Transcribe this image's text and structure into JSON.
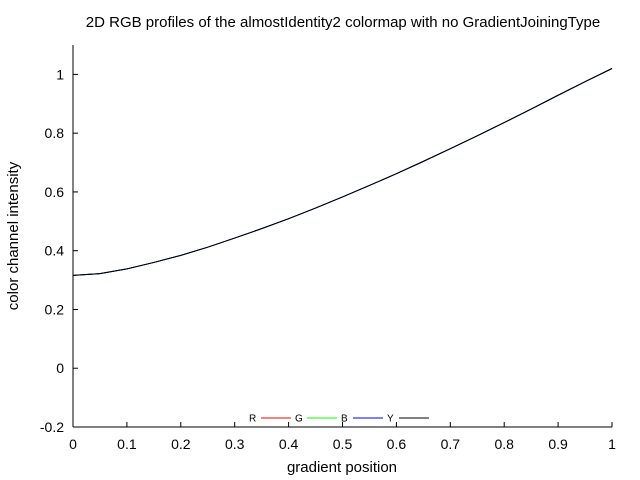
{
  "chart_data": {
    "type": "line",
    "title": "2D RGB profiles of the almostIdentity2 colormap with no GradientJoiningType",
    "xlabel": "gradient position",
    "ylabel": "color channel intensity",
    "xlim": [
      0,
      1
    ],
    "ylim": [
      -0.2,
      1.1
    ],
    "xticks": [
      0,
      0.1,
      0.2,
      0.3,
      0.4,
      0.5,
      0.6,
      0.7,
      0.8,
      0.9,
      1
    ],
    "xtick_labels": [
      "0",
      "0.1",
      "0.2",
      "0.3",
      "0.4",
      "0.5",
      "0.6",
      "0.7",
      "0.8",
      "0.9",
      "1"
    ],
    "yticks": [
      -0.2,
      0,
      0.2,
      0.4,
      0.6,
      0.8,
      1
    ],
    "ytick_labels": [
      "-0.2",
      "0",
      "0.2",
      "0.4",
      "0.6",
      "0.8",
      "1"
    ],
    "legend_position": "bottom-center",
    "grid": false,
    "series": [
      {
        "name": "R",
        "color": "#ff0000",
        "x": [
          0,
          0.05,
          0.1,
          0.15,
          0.2,
          0.25,
          0.3,
          0.35,
          0.4,
          0.45,
          0.5,
          0.55,
          0.6,
          0.65,
          0.7,
          0.75,
          0.8,
          0.85,
          0.9,
          0.95,
          1
        ],
        "y": [
          0.316,
          0.322,
          0.338,
          0.36,
          0.384,
          0.412,
          0.443,
          0.475,
          0.509,
          0.545,
          0.583,
          0.622,
          0.662,
          0.704,
          0.747,
          0.791,
          0.836,
          0.882,
          0.929,
          0.975,
          1.02
        ]
      },
      {
        "name": "G",
        "color": "#00ff00",
        "x": [
          0,
          0.05,
          0.1,
          0.15,
          0.2,
          0.25,
          0.3,
          0.35,
          0.4,
          0.45,
          0.5,
          0.55,
          0.6,
          0.65,
          0.7,
          0.75,
          0.8,
          0.85,
          0.9,
          0.95,
          1
        ],
        "y": [
          0.316,
          0.322,
          0.338,
          0.36,
          0.384,
          0.412,
          0.443,
          0.475,
          0.509,
          0.545,
          0.583,
          0.622,
          0.662,
          0.704,
          0.747,
          0.791,
          0.836,
          0.882,
          0.929,
          0.975,
          1.02
        ]
      },
      {
        "name": "B",
        "color": "#0000ff",
        "x": [
          0,
          0.05,
          0.1,
          0.15,
          0.2,
          0.25,
          0.3,
          0.35,
          0.4,
          0.45,
          0.5,
          0.55,
          0.6,
          0.65,
          0.7,
          0.75,
          0.8,
          0.85,
          0.9,
          0.95,
          1
        ],
        "y": [
          0.316,
          0.322,
          0.338,
          0.36,
          0.384,
          0.412,
          0.443,
          0.475,
          0.509,
          0.545,
          0.583,
          0.622,
          0.662,
          0.704,
          0.747,
          0.791,
          0.836,
          0.882,
          0.929,
          0.975,
          1.02
        ]
      },
      {
        "name": "Y",
        "color": "#000000",
        "x": [
          0,
          0.05,
          0.1,
          0.15,
          0.2,
          0.25,
          0.3,
          0.35,
          0.4,
          0.45,
          0.5,
          0.55,
          0.6,
          0.65,
          0.7,
          0.75,
          0.8,
          0.85,
          0.9,
          0.95,
          1
        ],
        "y": [
          0.316,
          0.322,
          0.338,
          0.36,
          0.384,
          0.412,
          0.443,
          0.475,
          0.509,
          0.545,
          0.583,
          0.622,
          0.662,
          0.704,
          0.747,
          0.791,
          0.836,
          0.882,
          0.929,
          0.975,
          1.02
        ]
      }
    ]
  }
}
